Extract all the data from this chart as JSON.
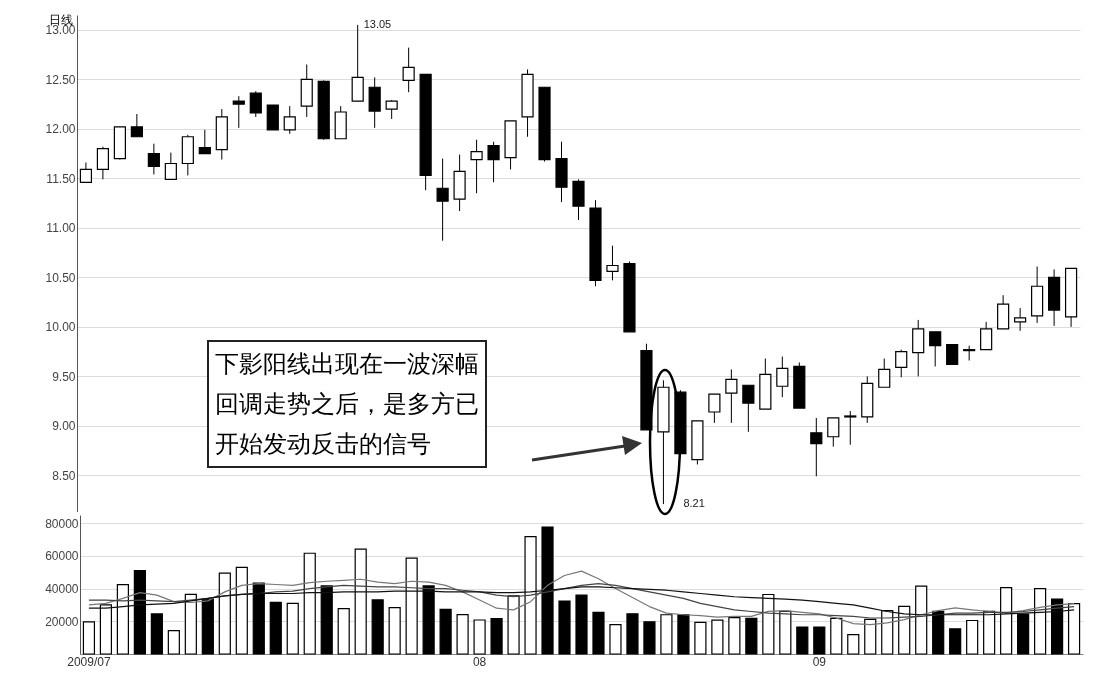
{
  "chart_data": [
    {
      "type": "candlestick",
      "title": "日线",
      "categories": [
        "2009/07",
        null,
        null,
        null,
        null,
        null,
        null,
        null,
        null,
        null,
        null,
        null,
        null,
        null,
        null,
        null,
        null,
        null,
        null,
        null,
        null,
        null,
        null,
        "08",
        null,
        null,
        null,
        null,
        null,
        null,
        null,
        null,
        null,
        null,
        null,
        null,
        null,
        null,
        null,
        null,
        null,
        null,
        null,
        "09",
        null,
        null,
        null,
        null,
        null,
        null,
        null,
        null,
        null,
        null,
        null,
        null,
        null,
        null,
        null
      ],
      "ohlc": [
        [
          11.46,
          11.66,
          11.46,
          11.59
        ],
        [
          11.59,
          11.82,
          11.49,
          11.8
        ],
        [
          11.7,
          12.02,
          11.69,
          12.02
        ],
        [
          12.02,
          12.15,
          11.92,
          11.92
        ],
        [
          11.75,
          11.85,
          11.54,
          11.62
        ],
        [
          11.49,
          11.76,
          11.49,
          11.65
        ],
        [
          11.65,
          11.94,
          11.53,
          11.92
        ],
        [
          11.81,
          11.99,
          11.75,
          11.75
        ],
        [
          11.79,
          12.2,
          11.69,
          12.12
        ],
        [
          12.28,
          12.33,
          12.01,
          12.25
        ],
        [
          12.36,
          12.38,
          12.12,
          12.16
        ],
        [
          12.24,
          12.24,
          11.99,
          11.99
        ],
        [
          11.99,
          12.23,
          11.95,
          12.12
        ],
        [
          12.23,
          12.65,
          12.12,
          12.5
        ],
        [
          12.48,
          12.49,
          11.89,
          11.9
        ],
        [
          11.9,
          12.23,
          11.9,
          12.17
        ],
        [
          12.28,
          13.05,
          12.28,
          12.52
        ],
        [
          12.42,
          12.52,
          12.01,
          12.18
        ],
        [
          12.2,
          12.29,
          12.1,
          12.28
        ],
        [
          12.49,
          12.82,
          12.37,
          12.62
        ],
        [
          12.55,
          12.55,
          11.38,
          11.53
        ],
        [
          11.4,
          11.7,
          10.87,
          11.27
        ],
        [
          11.29,
          11.74,
          11.17,
          11.57
        ],
        [
          11.69,
          11.89,
          11.35,
          11.77
        ],
        [
          11.83,
          11.87,
          11.46,
          11.69
        ],
        [
          11.71,
          12.08,
          11.59,
          12.08
        ],
        [
          12.12,
          12.6,
          11.92,
          12.55
        ],
        [
          12.42,
          12.42,
          11.67,
          11.69
        ],
        [
          11.7,
          11.87,
          11.26,
          11.41
        ],
        [
          11.47,
          11.49,
          11.08,
          11.22
        ],
        [
          11.2,
          11.28,
          10.41,
          10.47
        ],
        [
          10.56,
          10.82,
          10.47,
          10.62
        ],
        [
          10.64,
          10.66,
          9.95,
          9.95
        ],
        [
          9.76,
          9.83,
          8.96,
          8.96
        ],
        [
          8.94,
          9.46,
          8.21,
          9.39
        ],
        [
          9.34,
          9.36,
          8.72,
          8.72
        ],
        [
          8.66,
          9.05,
          8.61,
          9.05
        ],
        [
          9.14,
          9.32,
          9.03,
          9.32
        ],
        [
          9.33,
          9.57,
          9.03,
          9.47
        ],
        [
          9.41,
          9.41,
          8.94,
          9.23
        ],
        [
          9.17,
          9.68,
          9.17,
          9.52
        ],
        [
          9.4,
          9.7,
          9.29,
          9.58
        ],
        [
          9.6,
          9.64,
          9.18,
          9.18
        ],
        [
          8.93,
          9.08,
          8.49,
          8.82
        ],
        [
          8.89,
          9.08,
          8.79,
          9.08
        ],
        [
          9.09,
          9.15,
          8.81,
          9.1
        ],
        [
          9.09,
          9.5,
          9.03,
          9.43
        ],
        [
          9.39,
          9.68,
          9.39,
          9.57
        ],
        [
          9.59,
          9.77,
          9.49,
          9.75
        ],
        [
          9.74,
          10.07,
          9.5,
          9.98
        ],
        [
          9.95,
          9.95,
          9.6,
          9.81
        ],
        [
          9.82,
          9.82,
          9.62,
          9.62
        ],
        [
          9.76,
          9.81,
          9.66,
          9.77
        ],
        [
          9.77,
          10.05,
          9.77,
          9.98
        ],
        [
          9.98,
          10.32,
          9.98,
          10.23
        ],
        [
          10.05,
          10.19,
          9.96,
          10.09
        ],
        [
          10.11,
          10.61,
          10.04,
          10.41
        ],
        [
          10.5,
          10.58,
          10.01,
          10.17
        ],
        [
          10.1,
          10.59,
          10,
          10.59
        ]
      ],
      "ylim": [
        8.13,
        13.15
      ],
      "yticks": [
        {
          "value": 8.5,
          "label": "8.50"
        },
        {
          "value": 9,
          "label": "9.00"
        },
        {
          "value": 9.5,
          "label": "9.50"
        },
        {
          "value": 10,
          "label": "10.00"
        },
        {
          "value": 10.5,
          "label": "10.50"
        },
        {
          "value": 11,
          "label": "11.00"
        },
        {
          "value": 11.5,
          "label": "11.50"
        },
        {
          "value": 12,
          "label": "12.00"
        },
        {
          "value": 12.5,
          "label": "12.50"
        },
        {
          "value": 13,
          "label": "13.00"
        }
      ],
      "grid": "y",
      "tick_labels": "y",
      "annotations": [
        "下影阳线出现在一波深幅回调走势之后，是多方已开始发动反击的信号",
        "13.05",
        "8.21"
      ]
    },
    {
      "type": "bar",
      "categories": [
        "2009/07",
        null,
        null,
        null,
        null,
        null,
        null,
        null,
        null,
        null,
        null,
        null,
        null,
        null,
        null,
        null,
        null,
        null,
        null,
        null,
        null,
        null,
        null,
        "08",
        null,
        null,
        null,
        null,
        null,
        null,
        null,
        null,
        null,
        null,
        null,
        null,
        null,
        null,
        null,
        null,
        null,
        null,
        null,
        "09",
        null,
        null,
        null,
        null,
        null,
        null,
        null,
        null,
        null,
        null,
        null,
        null,
        null,
        null,
        null
      ],
      "series": [
        {
          "type": "bar",
          "values": [
            19600,
            30000,
            42400,
            51000,
            24500,
            14300,
            36500,
            33500,
            49400,
            53000,
            43300,
            31600,
            31000,
            61600,
            41600,
            27800,
            64100,
            33100,
            28400,
            58600,
            41600,
            27300,
            24100,
            20800,
            21600,
            35500,
            71800,
            77600,
            32400,
            36000,
            25500,
            18000,
            24600,
            19700,
            24000,
            24000,
            19300,
            20700,
            22200,
            21800,
            36400,
            26100,
            16500,
            16500,
            21800,
            11800,
            21200,
            26500,
            29100,
            41500,
            26100,
            15400,
            20500,
            26100,
            40600,
            24400,
            40000,
            33600,
            30800
          ],
          "colors": [
            "#ffffff",
            "#ffffff",
            "#ffffff",
            "#000000",
            "#000000",
            "#ffffff",
            "#ffffff",
            "#000000",
            "#ffffff",
            "#ffffff",
            "#000000",
            "#000000",
            "#ffffff",
            "#ffffff",
            "#000000",
            "#ffffff",
            "#ffffff",
            "#000000",
            "#ffffff",
            "#ffffff",
            "#000000",
            "#000000",
            "#ffffff",
            "#ffffff",
            "#000000",
            "#ffffff",
            "#ffffff",
            "#000000",
            "#000000",
            "#000000",
            "#000000",
            "#ffffff",
            "#000000",
            "#000000",
            "#ffffff",
            "#000000",
            "#ffffff",
            "#ffffff",
            "#ffffff",
            "#000000",
            "#ffffff",
            "#ffffff",
            "#000000",
            "#000000",
            "#ffffff",
            "#ffffff",
            "#ffffff",
            "#ffffff",
            "#ffffff",
            "#ffffff",
            "#000000",
            "#000000",
            "#ffffff",
            "#ffffff",
            "#ffffff",
            "#000000",
            "#ffffff",
            "#000000",
            "#ffffff"
          ]
        },
        {
          "type": "line",
          "color": "#777777",
          "values": [
            30000,
            31000,
            34000,
            37500,
            36000,
            32000,
            31500,
            32500,
            38000,
            42000,
            43000,
            42500,
            42000,
            43700,
            44500,
            45000,
            45700,
            44000,
            43000,
            44500,
            44000,
            42000,
            38000,
            33000,
            28000,
            27000,
            32000,
            42000,
            48000,
            50700,
            46000,
            40000,
            34600,
            29000,
            25000,
            24000,
            23500,
            22500,
            23000,
            23000,
            26100,
            26500,
            25500,
            24500,
            22000,
            18600,
            18000,
            19000,
            21000,
            24000,
            26500,
            28200,
            27000,
            26000,
            25000,
            26500,
            28500,
            30000,
            30800
          ]
        },
        {
          "type": "line",
          "color": "#444444",
          "values": [
            33000,
            33000,
            32500,
            33000,
            32500,
            32000,
            33000,
            34000,
            35500,
            36500,
            37000,
            38000,
            38500,
            40000,
            41000,
            42000,
            41500,
            41000,
            41000,
            40500,
            40000,
            40000,
            39000,
            38000,
            36000,
            35000,
            36000,
            38000,
            40000,
            42000,
            43000,
            42000,
            40000,
            38000,
            36000,
            34000,
            31000,
            29000,
            27000,
            26000,
            25000,
            24500,
            24000,
            24000,
            23500,
            23000,
            22000,
            22000,
            22500,
            23000,
            24000,
            25000,
            25000,
            25500,
            25500,
            26000,
            27000,
            28000,
            29000
          ]
        },
        {
          "type": "line",
          "color": "#111111",
          "values": [
            28000,
            28000,
            29000,
            30000,
            30500,
            31000,
            32500,
            34000,
            35500,
            36500,
            37000,
            37000,
            37000,
            37500,
            37500,
            38000,
            38000,
            38000,
            38500,
            38500,
            38500,
            38000,
            38000,
            38000,
            37500,
            37500,
            38000,
            39000,
            40000,
            41000,
            41000,
            40500,
            40000,
            39500,
            39000,
            38000,
            37000,
            36000,
            35000,
            34500,
            34000,
            33500,
            33000,
            32000,
            31000,
            30000,
            28000,
            26000,
            24500,
            24000,
            24000,
            24000,
            24000,
            24000,
            24500,
            25000,
            25500,
            26000,
            27000
          ]
        }
      ],
      "ylim": [
        0,
        85000
      ],
      "yticks": [
        20000,
        40000,
        60000,
        80000
      ],
      "grid": "y"
    }
  ]
}
